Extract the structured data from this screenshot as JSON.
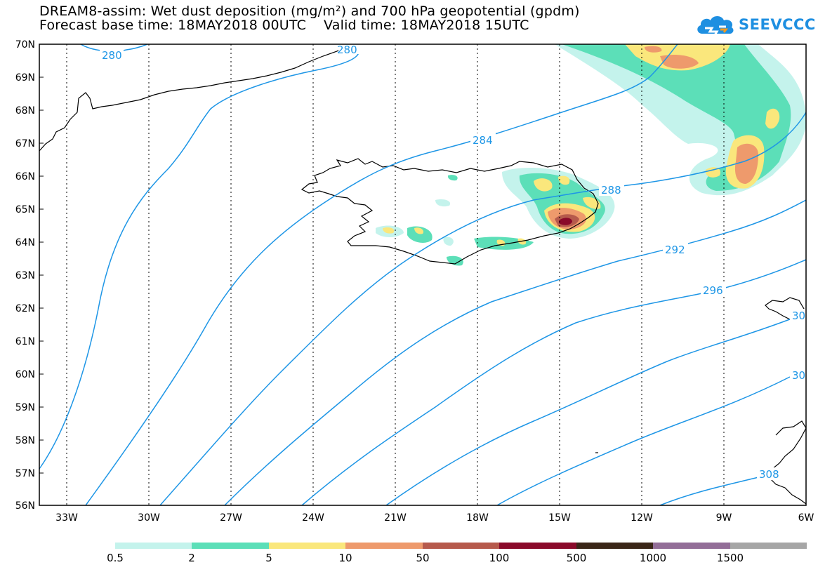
{
  "header": {
    "title_line1": "DREAM8-assim: Wet dust deposition (mg/m²) and 700 hPa geopotential (gpdm)",
    "title_line2": "Forecast base time: 18MAY2018 00UTC    Valid time: 18MAY2018 15UTC"
  },
  "logo": {
    "text": "SEEVCCC",
    "icon": "cloud-logo-icon"
  },
  "map": {
    "lat_labels": [
      "70N",
      "69N",
      "68N",
      "67N",
      "66N",
      "65N",
      "64N",
      "63N",
      "62N",
      "61N",
      "60N",
      "59N",
      "58N",
      "57N",
      "56N"
    ],
    "lon_labels": [
      "33W",
      "30W",
      "27W",
      "24W",
      "21W",
      "18W",
      "15W",
      "12W",
      "9W",
      "6W"
    ],
    "contour_labels": [
      "280",
      "280",
      "284",
      "288",
      "292",
      "296",
      "30",
      "30",
      "308"
    ],
    "contour_color": "#1e96e6"
  },
  "legend": {
    "labels": [
      "0.5",
      "2",
      "5",
      "10",
      "50",
      "100",
      "500",
      "1000",
      "1500"
    ],
    "colors": [
      "#c4f3ec",
      "#5cdfb8",
      "#fae77c",
      "#ee9a6c",
      "#b65a4c",
      "#8a0a2a",
      "#3a2618",
      "#936e98",
      "#a6a6a6"
    ]
  }
}
